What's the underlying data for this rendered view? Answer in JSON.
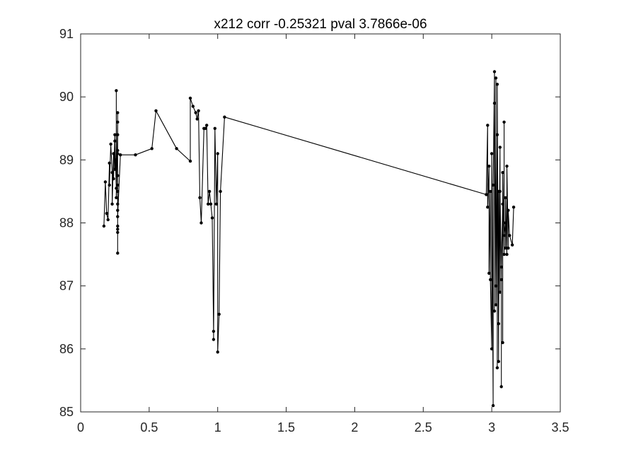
{
  "chart_data": {
    "type": "line",
    "title": "x212 corr -0.25321 pval 3.7866e-06",
    "xlabel": "",
    "ylabel": "",
    "xlim": [
      0,
      3.5
    ],
    "ylim": [
      85,
      91
    ],
    "xticks": [
      "0",
      "0.5",
      "1",
      "1.5",
      "2",
      "2.5",
      "3",
      "3.5"
    ],
    "yticks": [
      "85",
      "86",
      "87",
      "88",
      "89",
      "90",
      "91"
    ],
    "grid": false,
    "legend": "none",
    "line_color": "#000000",
    "marker": "dot",
    "series": [
      {
        "x": [
          0.17,
          0.18,
          0.19,
          0.2,
          0.21,
          0.21,
          0.22,
          0.23,
          0.23,
          0.24,
          0.24,
          0.25,
          0.25,
          0.25,
          0.26,
          0.26,
          0.26,
          0.26,
          0.27,
          0.27,
          0.27,
          0.27,
          0.27,
          0.27,
          0.27,
          0.27,
          0.27,
          0.27,
          0.27,
          0.27,
          0.27,
          0.27,
          0.27,
          0.29,
          0.4,
          0.52,
          0.55,
          0.7,
          0.8,
          0.8,
          0.82,
          0.84,
          0.85,
          0.86,
          0.87,
          0.88,
          0.9,
          0.91,
          0.92,
          0.93,
          0.94,
          0.95,
          0.96,
          0.97,
          0.97,
          0.98,
          0.99,
          1.0,
          1.0,
          1.01,
          1.02,
          1.05,
          2.96,
          2.97,
          2.97,
          2.98,
          2.98,
          2.99,
          2.99,
          3.0,
          3.0,
          3.01,
          3.01,
          3.02,
          3.02,
          3.02,
          3.03,
          3.03,
          3.03,
          3.04,
          3.04,
          3.04,
          3.05,
          3.05,
          3.05,
          3.06,
          3.06,
          3.06,
          3.07,
          3.07,
          3.07,
          3.08,
          3.08,
          3.08,
          3.09,
          3.09,
          3.09,
          3.1,
          3.1,
          3.1,
          3.11,
          3.11,
          3.12,
          3.12,
          3.13,
          3.15,
          3.16
        ],
        "y": [
          87.95,
          88.65,
          88.15,
          88.05,
          88.95,
          88.6,
          89.25,
          88.8,
          88.3,
          89.1,
          88.7,
          89.4,
          88.85,
          89.3,
          88.55,
          90.1,
          89.0,
          88.4,
          89.6,
          89.75,
          88.2,
          89.1,
          88.6,
          89.4,
          87.95,
          88.75,
          88.3,
          89.15,
          87.9,
          88.5,
          87.52,
          87.85,
          88.1,
          89.08,
          89.08,
          89.18,
          89.78,
          89.18,
          88.98,
          89.98,
          89.85,
          89.75,
          89.65,
          89.78,
          88.4,
          88.0,
          89.5,
          89.5,
          89.55,
          88.3,
          88.5,
          88.3,
          88.08,
          86.28,
          86.15,
          89.5,
          88.3,
          89.1,
          85.95,
          86.55,
          88.5,
          89.68,
          88.45,
          89.55,
          88.25,
          88.9,
          87.2,
          88.5,
          87.1,
          86.0,
          89.1,
          85.1,
          88.6,
          90.4,
          86.6,
          89.9,
          87.0,
          90.3,
          86.7,
          89.4,
          85.7,
          90.2,
          85.8,
          88.5,
          86.4,
          89.2,
          86.9,
          88.5,
          87.1,
          85.4,
          87.3,
          88.3,
          86.1,
          88.8,
          87.5,
          89.6,
          87.8,
          88.0,
          87.6,
          88.4,
          87.5,
          88.9,
          87.6,
          88.2,
          87.8,
          87.65,
          88.25
        ]
      }
    ]
  }
}
